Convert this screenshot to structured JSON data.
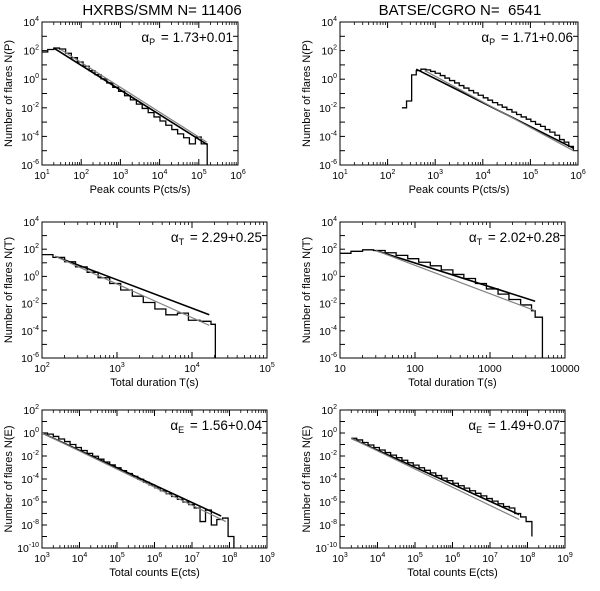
{
  "column_titles": [
    "HXRBS/SMM N= 11406",
    "BATSE/CGRO N=  6541"
  ],
  "colors": {
    "observed": "#000000",
    "model": "#000000",
    "fit": "#808080"
  },
  "chart_data": [
    {
      "type": "line",
      "id": "hxrbs-peak",
      "title": "HXRBS/SMM N= 11406",
      "xlabel": "Peak counts P(cts/s)",
      "ylabel": "Number of flares N(P)",
      "xscale": "log",
      "yscale": "log",
      "xlim": [
        10,
        1000000
      ],
      "ylim": [
        1e-06,
        10000.0
      ],
      "xticks": [
        {
          "v": 10,
          "t": "10",
          "e": "1"
        },
        {
          "v": 100,
          "t": "10",
          "e": "2"
        },
        {
          "v": 1000,
          "t": "10",
          "e": "3"
        },
        {
          "v": 10000,
          "t": "10",
          "e": "4"
        },
        {
          "v": 100000,
          "t": "10",
          "e": "5"
        },
        {
          "v": 1000000,
          "t": "10",
          "e": "6"
        }
      ],
      "yticks": [
        {
          "v": 1e-06,
          "t": "10",
          "e": "-6"
        },
        {
          "v": 0.0001,
          "t": "10",
          "e": "-4"
        },
        {
          "v": 0.01,
          "t": "10",
          "e": "-2"
        },
        {
          "v": 1,
          "t": "10",
          "e": "0"
        },
        {
          "v": 100,
          "t": "10",
          "e": "2"
        },
        {
          "v": 10000,
          "t": "10",
          "e": "4"
        }
      ],
      "annotation": {
        "symbol": "α",
        "sub": "P",
        "value": "1.73+0.01"
      },
      "series": [
        {
          "name": "observed",
          "style": "step",
          "x": [
            10,
            14,
            20,
            28,
            40,
            56,
            80,
            112,
            160,
            224,
            320,
            450,
            640,
            900,
            1280,
            1800,
            2560,
            3600,
            5120,
            7200,
            10240,
            14400,
            20480,
            28800,
            40960,
            57600,
            81920,
            115200,
            163840,
            163840
          ],
          "y": [
            80,
            120,
            150,
            130,
            65,
            32,
            16,
            8,
            4,
            2.1,
            1.05,
            0.55,
            0.27,
            0.14,
            0.07,
            0.036,
            0.018,
            0.009,
            0.0046,
            0.0023,
            0.0012,
            0.0006,
            0.0003,
            0.00015,
            8e-05,
            3e-05,
            9e-05,
            3e-05,
            3e-05,
            1e-06
          ]
        },
        {
          "name": "model",
          "style": "line",
          "x": [
            20,
            160000
          ],
          "y": [
            150,
            2.8e-05
          ]
        },
        {
          "name": "fit",
          "style": "line",
          "x": [
            30,
            160000
          ],
          "y": [
            120,
            4e-05
          ]
        }
      ]
    },
    {
      "type": "line",
      "id": "batse-peak",
      "title": "BATSE/CGRO N=  6541",
      "xlabel": "Peak counts P(cts/s)",
      "ylabel": "Number of flares N(P)",
      "xscale": "log",
      "yscale": "log",
      "xlim": [
        10,
        1000000
      ],
      "ylim": [
        1e-06,
        10000.0
      ],
      "xticks": [
        {
          "v": 10,
          "t": "10",
          "e": "1"
        },
        {
          "v": 100,
          "t": "10",
          "e": "2"
        },
        {
          "v": 1000,
          "t": "10",
          "e": "3"
        },
        {
          "v": 10000,
          "t": "10",
          "e": "4"
        },
        {
          "v": 100000,
          "t": "10",
          "e": "5"
        },
        {
          "v": 1000000,
          "t": "10",
          "e": "6"
        }
      ],
      "yticks": [
        {
          "v": 1e-06,
          "t": "10",
          "e": "-6"
        },
        {
          "v": 0.0001,
          "t": "10",
          "e": "-4"
        },
        {
          "v": 0.01,
          "t": "10",
          "e": "-2"
        },
        {
          "v": 1,
          "t": "10",
          "e": "0"
        },
        {
          "v": 100,
          "t": "10",
          "e": "2"
        },
        {
          "v": 10000,
          "t": "10",
          "e": "4"
        }
      ],
      "annotation": {
        "symbol": "α",
        "sub": "P",
        "value": "1.71+0.06"
      },
      "series": [
        {
          "name": "observed",
          "style": "step",
          "x": [
            200,
            250,
            320,
            400,
            500,
            640,
            800,
            1000,
            1280,
            1600,
            2000,
            2560,
            3200,
            4000,
            5120,
            6400,
            8000,
            10240,
            12800,
            16000,
            20480,
            25600,
            32000,
            40960,
            51200,
            64000,
            81920,
            102400,
            128000,
            163840,
            204800,
            256000,
            327680,
            409600,
            512000,
            640000,
            800000
          ],
          "y": [
            0.01,
            0.03,
            2,
            4,
            5,
            4.5,
            3.5,
            2.6,
            1.8,
            1.2,
            0.8,
            0.55,
            0.36,
            0.24,
            0.16,
            0.11,
            0.075,
            0.05,
            0.034,
            0.023,
            0.016,
            0.011,
            0.0075,
            0.005,
            0.0034,
            0.0023,
            0.0016,
            0.0011,
            0.0007,
            0.0005,
            0.0003,
            0.0002,
            0.00012,
            6e-05,
            4e-05,
            2e-05,
            1e-05
          ]
        },
        {
          "name": "model",
          "style": "line",
          "x": [
            400,
            800000
          ],
          "y": [
            5,
            1.5e-05
          ]
        },
        {
          "name": "fit",
          "style": "line",
          "x": [
            600,
            800000
          ],
          "y": [
            4,
            1e-05
          ]
        }
      ]
    },
    {
      "type": "line",
      "id": "hxrbs-duration",
      "xlabel": "Total duration  T(s)",
      "ylabel": "Number of flares N(T)",
      "xscale": "log",
      "yscale": "log",
      "xlim": [
        100,
        100000
      ],
      "ylim": [
        1e-06,
        10000.0
      ],
      "xticks": [
        {
          "v": 100,
          "t": "10",
          "e": "2"
        },
        {
          "v": 1000,
          "t": "10",
          "e": "3"
        },
        {
          "v": 10000,
          "t": "10",
          "e": "4"
        },
        {
          "v": 100000,
          "t": "10",
          "e": "5"
        }
      ],
      "yticks": [
        {
          "v": 1e-06,
          "t": "10",
          "e": "-6"
        },
        {
          "v": 0.0001,
          "t": "10",
          "e": "-4"
        },
        {
          "v": 0.01,
          "t": "10",
          "e": "-2"
        },
        {
          "v": 1,
          "t": "10",
          "e": "0"
        },
        {
          "v": 100,
          "t": "10",
          "e": "2"
        },
        {
          "v": 10000,
          "t": "10",
          "e": "4"
        }
      ],
      "annotation": {
        "symbol": "α",
        "sub": "T",
        "value": "2.29+0.25"
      },
      "series": [
        {
          "name": "observed",
          "style": "step",
          "x": [
            100,
            140,
            200,
            280,
            400,
            560,
            800,
            1120,
            1600,
            2240,
            3200,
            4480,
            6400,
            8960,
            12800,
            17920,
            20480,
            20480
          ],
          "y": [
            40,
            25,
            12,
            5,
            2,
            0.8,
            0.3,
            0.1,
            0.035,
            0.012,
            0.004,
            0.0015,
            0.002,
            0.0006,
            0.0005,
            0.0003,
            0.0003,
            1e-06
          ]
        },
        {
          "name": "model",
          "style": "line",
          "x": [
            150,
            17000
          ],
          "y": [
            30,
            0.0015
          ]
        },
        {
          "name": "fit",
          "style": "line",
          "x": [
            150,
            17000
          ],
          "y": [
            30,
            0.00025
          ]
        }
      ]
    },
    {
      "type": "line",
      "id": "batse-duration",
      "xlabel": "Total duration  T(s)",
      "ylabel": "Number of flares N(T)",
      "xscale": "log",
      "yscale": "log",
      "xlim": [
        10,
        10000
      ],
      "ylim": [
        1e-06,
        10000.0
      ],
      "xticks": [
        {
          "v": 10,
          "t": "10",
          "e": ""
        },
        {
          "v": 100,
          "t": "100",
          "e": ""
        },
        {
          "v": 1000,
          "t": "1000",
          "e": ""
        },
        {
          "v": 10000,
          "t": "10000",
          "e": ""
        }
      ],
      "yticks": [
        {
          "v": 1e-06,
          "t": "10",
          "e": "-6"
        },
        {
          "v": 0.0001,
          "t": "10",
          "e": "-4"
        },
        {
          "v": 0.01,
          "t": "10",
          "e": "-2"
        },
        {
          "v": 1,
          "t": "10",
          "e": "0"
        },
        {
          "v": 100,
          "t": "10",
          "e": "2"
        },
        {
          "v": 10000,
          "t": "10",
          "e": "4"
        }
      ],
      "annotation": {
        "symbol": "α",
        "sub": "T",
        "value": "2.02+0.28"
      },
      "series": [
        {
          "name": "observed",
          "style": "step",
          "x": [
            10,
            14,
            20,
            28,
            40,
            56,
            80,
            112,
            160,
            224,
            320,
            448,
            640,
            896,
            1280,
            1790,
            2560,
            3580,
            4000,
            5000,
            5000
          ],
          "y": [
            50,
            70,
            90,
            80,
            55,
            35,
            20,
            11,
            6,
            3,
            1.4,
            0.7,
            0.3,
            0.12,
            0.05,
            0.02,
            0.008,
            0.003,
            0.001,
            0.0002,
            1e-06
          ]
        },
        {
          "name": "model",
          "style": "line",
          "x": [
            30,
            4000
          ],
          "y": [
            80,
            0.015
          ]
        },
        {
          "name": "fit",
          "style": "line",
          "x": [
            30,
            4000
          ],
          "y": [
            80,
            0.003
          ]
        }
      ]
    },
    {
      "type": "line",
      "id": "hxrbs-energy",
      "xlabel": "Total counts  E(cts)",
      "ylabel": "Number of flares N(E)",
      "xscale": "log",
      "yscale": "log",
      "xlim": [
        1000,
        1000000000.0
      ],
      "ylim": [
        1e-10,
        100
      ],
      "xticks": [
        {
          "v": 1000,
          "t": "10",
          "e": "3"
        },
        {
          "v": 10000,
          "t": "10",
          "e": "4"
        },
        {
          "v": 100000,
          "t": "10",
          "e": "5"
        },
        {
          "v": 1000000,
          "t": "10",
          "e": "6"
        },
        {
          "v": 10000000,
          "t": "10",
          "e": "7"
        },
        {
          "v": 100000000,
          "t": "10",
          "e": "8"
        },
        {
          "v": 1000000000,
          "t": "10",
          "e": "9"
        }
      ],
      "yticks": [
        {
          "v": 1e-10,
          "t": "10",
          "e": "-10"
        },
        {
          "v": 1e-08,
          "t": "10",
          "e": "-8"
        },
        {
          "v": 1e-06,
          "t": "10",
          "e": "-6"
        },
        {
          "v": 0.0001,
          "t": "10",
          "e": "-4"
        },
        {
          "v": 0.01,
          "t": "10",
          "e": "-2"
        },
        {
          "v": 1,
          "t": "10",
          "e": "0"
        },
        {
          "v": 100,
          "t": "10",
          "e": "2"
        }
      ],
      "annotation": {
        "symbol": "α",
        "sub": "E",
        "value": "1.56+0.04"
      },
      "series": [
        {
          "name": "observed",
          "style": "step",
          "x": [
            1000,
            1400,
            2000,
            2800,
            4000,
            5600,
            8000,
            11200,
            16000,
            22400,
            32000,
            44800,
            64000,
            89600,
            128000,
            179200,
            256000,
            358400,
            512000,
            716800,
            1024000,
            1433600,
            2048000,
            2867200,
            4096000,
            5734400,
            8192000,
            11468800,
            16384000,
            22937600,
            32768000,
            45875200,
            65536000,
            91750400,
            131072000,
            131072000
          ],
          "y": [
            1,
            0.8,
            0.5,
            0.3,
            0.18,
            0.1,
            0.055,
            0.03,
            0.017,
            0.0095,
            0.0053,
            0.003,
            0.0017,
            0.00095,
            0.00053,
            0.0003,
            0.00017,
            9.5e-05,
            5.3e-05,
            3e-05,
            1.7e-05,
            9.5e-06,
            5.3e-06,
            3e-06,
            1.7e-06,
            1e-06,
            6e-07,
            3e-07,
            2e-08,
            2e-07,
            1e-08,
            3e-08,
            4e-08,
            1e-09,
            1e-09,
            1e-10
          ]
        },
        {
          "name": "model",
          "style": "line",
          "x": [
            1000,
            60000000
          ],
          "y": [
            1,
            6e-08
          ]
        },
        {
          "name": "fit",
          "style": "line",
          "x": [
            1000,
            80000000
          ],
          "y": [
            1,
            2e-08
          ]
        }
      ]
    },
    {
      "type": "line",
      "id": "batse-energy",
      "xlabel": "Total counts  E(cts)",
      "ylabel": "Number of flares N(E)",
      "xscale": "log",
      "yscale": "log",
      "xlim": [
        1000,
        1000000000.0
      ],
      "ylim": [
        1e-10,
        100
      ],
      "xticks": [
        {
          "v": 1000,
          "t": "10",
          "e": "3"
        },
        {
          "v": 10000,
          "t": "10",
          "e": "4"
        },
        {
          "v": 100000,
          "t": "10",
          "e": "5"
        },
        {
          "v": 1000000,
          "t": "10",
          "e": "6"
        },
        {
          "v": 10000000,
          "t": "10",
          "e": "7"
        },
        {
          "v": 100000000,
          "t": "10",
          "e": "8"
        },
        {
          "v": 1000000000,
          "t": "10",
          "e": "9"
        }
      ],
      "yticks": [
        {
          "v": 1e-10,
          "t": "10",
          "e": "-10"
        },
        {
          "v": 1e-08,
          "t": "10",
          "e": "-8"
        },
        {
          "v": 1e-06,
          "t": "10",
          "e": "-6"
        },
        {
          "v": 0.0001,
          "t": "10",
          "e": "-4"
        },
        {
          "v": 0.01,
          "t": "10",
          "e": "-2"
        },
        {
          "v": 1,
          "t": "10",
          "e": "0"
        },
        {
          "v": 100,
          "t": "10",
          "e": "2"
        }
      ],
      "annotation": {
        "symbol": "α",
        "sub": "E",
        "value": "1.49+0.07"
      },
      "series": [
        {
          "name": "observed",
          "style": "step",
          "x": [
            2000,
            2800,
            4000,
            5600,
            8000,
            11200,
            16000,
            22400,
            32000,
            44800,
            64000,
            89600,
            128000,
            179200,
            256000,
            358400,
            512000,
            716800,
            1024000,
            1433600,
            2048000,
            2867200,
            4096000,
            5734400,
            8192000,
            11468800,
            16384000,
            22937600,
            32768000,
            45875200,
            65536000,
            91750400,
            131072000,
            131072000
          ],
          "y": [
            0.35,
            0.25,
            0.15,
            0.09,
            0.055,
            0.033,
            0.02,
            0.012,
            0.0072,
            0.0043,
            0.0026,
            0.0016,
            0.00095,
            0.00057,
            0.00034,
            0.0002,
            0.00012,
            7.2e-05,
            4.3e-05,
            2.6e-05,
            1.6e-05,
            9.5e-06,
            5.7e-06,
            3.4e-06,
            2e-06,
            1.2e-06,
            7e-07,
            4e-07,
            3e-07,
            1e-07,
            5e-08,
            2e-08,
            1e-08,
            1e-09
          ]
        },
        {
          "name": "model",
          "style": "line",
          "x": [
            2000,
            60000000
          ],
          "y": [
            0.35,
            8e-08
          ]
        },
        {
          "name": "fit",
          "style": "line",
          "x": [
            2000,
            60000000
          ],
          "y": [
            0.35,
            3e-08
          ]
        }
      ]
    }
  ]
}
